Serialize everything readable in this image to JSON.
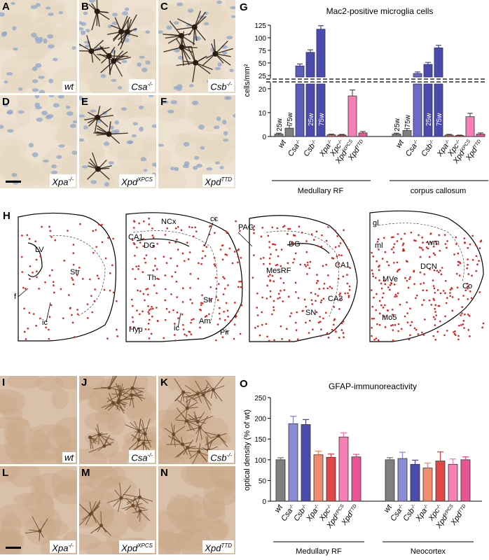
{
  "panels": {
    "top": [
      {
        "id": "A",
        "genotype": "wt",
        "sup": "",
        "tone": "light",
        "cells": 0
      },
      {
        "id": "B",
        "genotype": "Csa",
        "sup": "-/-",
        "tone": "light",
        "cells": 6
      },
      {
        "id": "C",
        "genotype": "Csb",
        "sup": "-/-",
        "tone": "light",
        "cells": 5
      },
      {
        "id": "D",
        "genotype": "Xpa",
        "sup": "-/-",
        "tone": "light",
        "cells": 0
      },
      {
        "id": "E",
        "genotype": "Xpd",
        "sup": "XPCS",
        "tone": "light",
        "cells": 3
      },
      {
        "id": "F",
        "genotype": "Xpd",
        "sup": "TTD",
        "tone": "light",
        "cells": 0
      }
    ],
    "bottom": [
      {
        "id": "I",
        "genotype": "wt",
        "sup": "",
        "tone": "tan",
        "cells": 0
      },
      {
        "id": "J",
        "genotype": "Csa",
        "sup": "-/-",
        "tone": "tan",
        "cells": 14
      },
      {
        "id": "K",
        "genotype": "Csb",
        "sup": "-/-",
        "tone": "tan",
        "cells": 14
      },
      {
        "id": "L",
        "genotype": "Xpa",
        "sup": "-/-",
        "tone": "tan",
        "cells": 1
      },
      {
        "id": "M",
        "genotype": "Xpd",
        "sup": "XPCS",
        "tone": "tan",
        "cells": 7
      },
      {
        "id": "N",
        "genotype": "Xpd",
        "sup": "TTD",
        "tone": "tan",
        "cells": 0
      }
    ]
  },
  "labels": {
    "G": "G",
    "H": "H",
    "O": "O"
  },
  "chart_data": [
    {
      "type": "bar",
      "panel": "G",
      "title": "Mac2-positive microglia cells",
      "ylabel": "cells/mm²",
      "axis_break": {
        "lower_ylim": [
          0,
          22
        ],
        "lower_ticks": [
          0,
          10,
          20
        ],
        "upper_ylim": [
          22,
          125
        ],
        "upper_ticks": [
          25,
          50,
          75,
          100,
          125
        ]
      },
      "categories": [
        "wt",
        "Csa",
        "Csb",
        "Xpa",
        "Xpc",
        "Xpd",
        "Xpd"
      ],
      "category_sups": [
        "",
        "-/-",
        "-/-",
        "-/-",
        "-/-",
        "XPCS",
        "TTD"
      ],
      "groups": [
        {
          "name": "Medullary RF",
          "bars": [
            {
              "genotype": "wt",
              "age": "25w",
              "value": 1.0,
              "err": 0.4,
              "color": "#7f7f7f"
            },
            {
              "genotype": "wt",
              "age": "75w",
              "value": 3.5,
              "err": 1.2,
              "color": "#7f7f7f"
            },
            {
              "genotype": "Csa",
              "age": "",
              "value": 44,
              "err": 4,
              "color": "#5b5bb8"
            },
            {
              "genotype": "Csb",
              "age": "25w",
              "value": 71,
              "err": 5,
              "color": "#4b4bad"
            },
            {
              "genotype": "Csb",
              "age": "75w",
              "value": 117,
              "err": 7,
              "color": "#4b4bad"
            },
            {
              "genotype": "Xpa",
              "age": "",
              "value": 0.7,
              "err": 0.3,
              "color": "#e65a5a"
            },
            {
              "genotype": "Xpc",
              "age": "",
              "value": 0.6,
              "err": 0.3,
              "color": "#e04848"
            },
            {
              "genotype": "XpdXPCS",
              "age": "",
              "value": 17,
              "err": 2.5,
              "color": "#f77fb6"
            },
            {
              "genotype": "XpdTTD",
              "age": "",
              "value": 1.5,
              "err": 0.6,
              "color": "#e85595"
            }
          ]
        },
        {
          "name": "corpus callosum",
          "bars": [
            {
              "genotype": "wt",
              "age": "25w",
              "value": 1.0,
              "err": 0.4,
              "color": "#7f7f7f"
            },
            {
              "genotype": "wt",
              "age": "75w",
              "value": 2.5,
              "err": 0.8,
              "color": "#7f7f7f"
            },
            {
              "genotype": "Csa",
              "age": "",
              "value": 29,
              "err": 3,
              "color": "#6b6bc4"
            },
            {
              "genotype": "Csb",
              "age": "25w",
              "value": 47,
              "err": 4,
              "color": "#4b4bad"
            },
            {
              "genotype": "Csb",
              "age": "75w",
              "value": 80,
              "err": 5,
              "color": "#4b4bad"
            },
            {
              "genotype": "Xpa",
              "age": "",
              "value": 0.6,
              "err": 0.3,
              "color": "#e65a5a"
            },
            {
              "genotype": "Xpc",
              "age": "",
              "value": 0.4,
              "err": 0.2,
              "color": "#e04848"
            },
            {
              "genotype": "XpdXPCS",
              "age": "",
              "value": 8.3,
              "err": 1.4,
              "color": "#f77fb6"
            },
            {
              "genotype": "XpdTTD",
              "age": "",
              "value": 1.0,
              "err": 0.5,
              "color": "#e85595"
            }
          ]
        }
      ],
      "age_labels": [
        "25w",
        "75w"
      ]
    },
    {
      "type": "bar",
      "panel": "O",
      "title": "GFAP-immunoreactivity",
      "ylabel": "optical density (% of wt)",
      "ylim": [
        0,
        250
      ],
      "yticks": [
        0,
        50,
        100,
        150,
        200,
        250
      ],
      "categories": [
        "wt",
        "Csa",
        "Csb",
        "Xpa",
        "Xpc",
        "Xpd",
        "Xpd"
      ],
      "category_sups": [
        "",
        "-/-",
        "-/-",
        "-/-",
        "-/-",
        "XPCS",
        "TTD"
      ],
      "colors": [
        "#7f7f7f",
        "#8c8cd6",
        "#4b4bad",
        "#f28c6e",
        "#e04848",
        "#f77fb6",
        "#e85595"
      ],
      "series": [
        {
          "group": "Medullary RF",
          "values": [
            100,
            187,
            185,
            112,
            106,
            155,
            107
          ],
          "errors": [
            5,
            18,
            12,
            9,
            8,
            10,
            6
          ]
        },
        {
          "group": "Neocortex",
          "values": [
            100,
            103,
            89,
            80,
            97,
            89,
            100
          ],
          "errors": [
            5,
            15,
            10,
            12,
            22,
            13,
            7
          ]
        }
      ]
    }
  ],
  "diagram_H": {
    "labels": [
      "LV",
      "Str",
      "f",
      "ic",
      "NCx",
      "cc",
      "CA1",
      "DG",
      "Th",
      "Str",
      "Hyp",
      "ic",
      "Am",
      "Pir",
      "PAG",
      "DG",
      "MesRF",
      "CA1",
      "CA3",
      "SN",
      "gl",
      "ml",
      "wm",
      "DCN",
      "MVe",
      "Co",
      "Mo5"
    ]
  }
}
